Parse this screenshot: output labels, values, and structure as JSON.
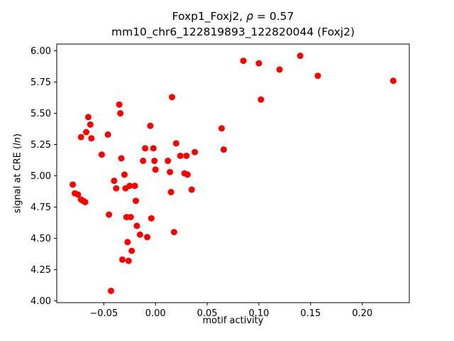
{
  "figure": {
    "title_line1_prefix": "Foxp1_Foxj2, ",
    "title_rho": "ρ",
    "title_line1_suffix": " = 0.57",
    "title_line2": "mm10_chr6_122819893_122820044 (Foxj2)",
    "xlabel": "motif activity",
    "ylabel_prefix": "signal at CRE (",
    "ylabel_italic": "ln",
    "ylabel_suffix": ")"
  },
  "chart_data": {
    "type": "scatter",
    "title": "Foxp1_Foxj2, ρ = 0.57\nmm10_chr6_122819893_122820044 (Foxj2)",
    "xlabel": "motif activity",
    "ylabel": "signal at CRE (ln)",
    "legend": "none",
    "grid": false,
    "marker_color": "#ff0000",
    "marker_size_px": 4.5,
    "xlim": [
      -0.0955,
      0.2455
    ],
    "ylim": [
      3.986,
      6.054
    ],
    "xticks": [
      -0.05,
      0.0,
      0.05,
      0.1,
      0.15,
      0.2
    ],
    "xtick_labels": [
      "−0.05",
      "0.00",
      "0.05",
      "0.10",
      "0.15",
      "0.20"
    ],
    "yticks": [
      4.0,
      4.25,
      4.5,
      4.75,
      5.0,
      5.25,
      5.5,
      5.75,
      6.0
    ],
    "ytick_labels": [
      "4.00",
      "4.25",
      "4.50",
      "4.75",
      "5.00",
      "5.25",
      "5.50",
      "5.75",
      "6.00"
    ],
    "points": [
      [
        -0.08,
        4.93
      ],
      [
        -0.078,
        4.86
      ],
      [
        -0.075,
        4.85
      ],
      [
        -0.072,
        4.81
      ],
      [
        -0.07,
        4.8
      ],
      [
        -0.068,
        4.79
      ],
      [
        -0.065,
        5.47
      ],
      [
        -0.063,
        5.41
      ],
      [
        -0.067,
        5.35
      ],
      [
        -0.072,
        5.31
      ],
      [
        -0.062,
        5.3
      ],
      [
        -0.052,
        5.17
      ],
      [
        -0.046,
        5.33
      ],
      [
        -0.045,
        4.69
      ],
      [
        -0.043,
        4.08
      ],
      [
        -0.04,
        4.96
      ],
      [
        -0.038,
        4.9
      ],
      [
        -0.035,
        5.57
      ],
      [
        -0.034,
        5.5
      ],
      [
        -0.033,
        5.14
      ],
      [
        -0.032,
        4.33
      ],
      [
        -0.03,
        5.01
      ],
      [
        -0.029,
        4.9
      ],
      [
        -0.028,
        4.67
      ],
      [
        -0.027,
        4.47
      ],
      [
        -0.026,
        4.32
      ],
      [
        -0.025,
        4.92
      ],
      [
        -0.024,
        4.67
      ],
      [
        -0.023,
        4.4
      ],
      [
        -0.02,
        4.92
      ],
      [
        -0.019,
        4.8
      ],
      [
        -0.018,
        4.6
      ],
      [
        -0.015,
        4.53
      ],
      [
        -0.012,
        5.12
      ],
      [
        -0.01,
        5.22
      ],
      [
        -0.008,
        4.51
      ],
      [
        -0.005,
        5.4
      ],
      [
        -0.004,
        4.66
      ],
      [
        -0.002,
        5.22
      ],
      [
        -0.001,
        5.12
      ],
      [
        0.0,
        5.05
      ],
      [
        0.012,
        5.12
      ],
      [
        0.014,
        5.03
      ],
      [
        0.015,
        4.87
      ],
      [
        0.016,
        5.63
      ],
      [
        0.018,
        4.55
      ],
      [
        0.02,
        5.26
      ],
      [
        0.024,
        5.16
      ],
      [
        0.028,
        5.02
      ],
      [
        0.03,
        5.16
      ],
      [
        0.031,
        5.01
      ],
      [
        0.035,
        4.89
      ],
      [
        0.038,
        5.19
      ],
      [
        0.064,
        5.38
      ],
      [
        0.066,
        5.21
      ],
      [
        0.085,
        5.92
      ],
      [
        0.1,
        5.9
      ],
      [
        0.102,
        5.61
      ],
      [
        0.12,
        5.85
      ],
      [
        0.14,
        5.96
      ],
      [
        0.157,
        5.8
      ],
      [
        0.23,
        5.76
      ]
    ]
  }
}
